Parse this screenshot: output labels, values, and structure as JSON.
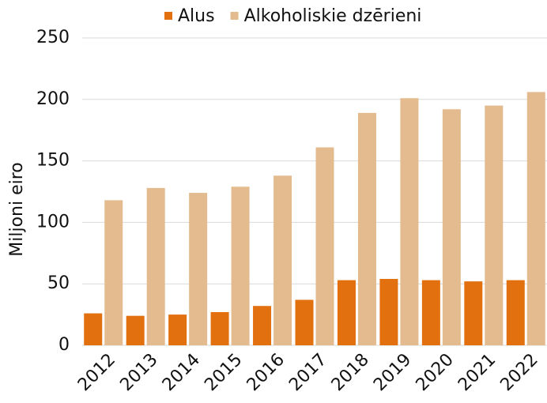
{
  "chart_data": {
    "type": "bar",
    "y_label": "Miljoni eiro",
    "categories": [
      "2012",
      "2013",
      "2014",
      "2015",
      "2016",
      "2017",
      "2018",
      "2019",
      "2020",
      "2021",
      "2022"
    ],
    "series": [
      {
        "name": "Alus",
        "color": "#e2700e",
        "values": [
          26,
          24,
          25,
          27,
          32,
          37,
          53,
          54,
          53,
          52,
          53
        ]
      },
      {
        "name": "Alkoholiskie dzērieni",
        "color": "#e3bb8f",
        "values": [
          118,
          128,
          124,
          129,
          138,
          161,
          189,
          201,
          192,
          195,
          206
        ]
      }
    ],
    "ylim": [
      0,
      250
    ],
    "yticks": [
      0,
      50,
      100,
      150,
      200,
      250
    ],
    "grid": true,
    "legend": "top"
  }
}
